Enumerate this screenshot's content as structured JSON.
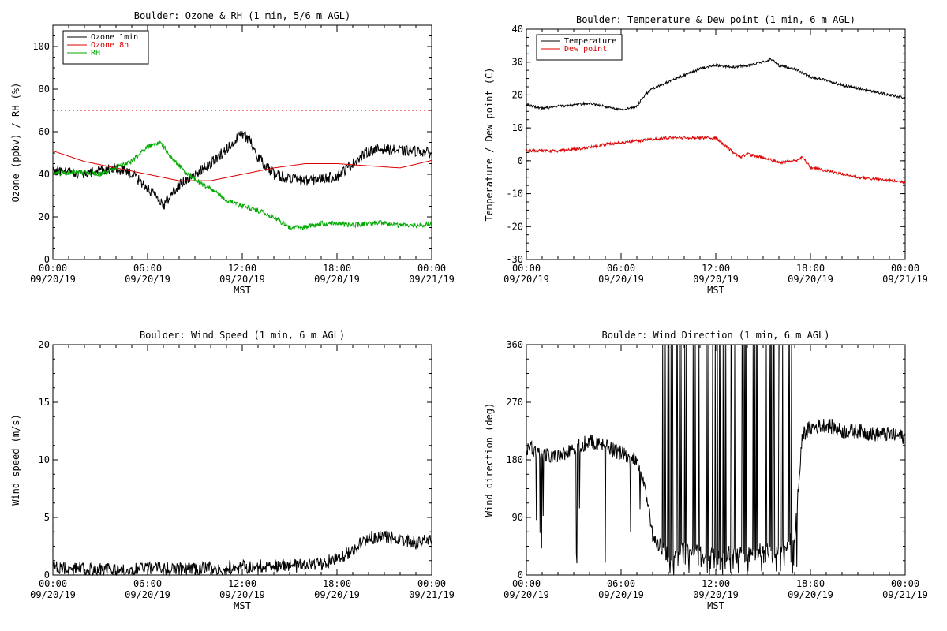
{
  "chart_data": [
    {
      "id": "ozone_rh",
      "type": "line",
      "title": "Boulder: Ozone & RH (1 min, 5/6 m AGL)",
      "xlabel": "MST",
      "ylabel": "Ozone (ppbv) / RH (%)",
      "ylim": [
        0,
        110
      ],
      "yticks": [
        0,
        20,
        40,
        60,
        80,
        100
      ],
      "xlim_hours": [
        0,
        24
      ],
      "x_ticks": [
        {
          "h": 0,
          "time": "00:00",
          "date": "09/20/19"
        },
        {
          "h": 6,
          "time": "06:00",
          "date": "09/20/19"
        },
        {
          "h": 12,
          "time": "12:00",
          "date": "09/20/19"
        },
        {
          "h": 18,
          "time": "18:00",
          "date": "09/20/19"
        },
        {
          "h": 24,
          "time": "00:00",
          "date": "09/21/19"
        }
      ],
      "legend_position": "top-left",
      "grid": false,
      "series": [
        {
          "name": "Ozone 1min",
          "color": "#000000",
          "style": "solid",
          "x": [
            0,
            1,
            2,
            3,
            4,
            5,
            5.5,
            6.2,
            7,
            7.5,
            8,
            9,
            10,
            11,
            12,
            12.5,
            13,
            14,
            15,
            16,
            17,
            18,
            19,
            20,
            21,
            22,
            23,
            24
          ],
          "y": [
            42,
            41,
            40,
            42,
            43,
            40,
            37,
            32,
            25,
            31,
            35,
            40,
            45,
            52,
            59,
            56,
            48,
            40,
            38,
            37,
            38,
            39,
            45,
            51,
            52,
            51,
            51,
            50
          ],
          "noise": 2.5
        },
        {
          "name": "Ozone 8h",
          "color": "#dd0000",
          "style": "solid",
          "x": [
            0,
            2,
            4,
            6,
            8,
            10,
            12,
            14,
            16,
            18,
            20,
            22,
            24
          ],
          "y": [
            51,
            46,
            43,
            40,
            37,
            37,
            40,
            43,
            45,
            45,
            44,
            43,
            46.5
          ],
          "noise": 0
        },
        {
          "name": "RH",
          "color": "#00aa00",
          "style": "solid",
          "x": [
            0,
            1,
            2,
            3,
            4,
            5,
            6,
            6.8,
            7.5,
            8.5,
            10,
            11,
            12,
            13,
            14,
            15,
            16,
            17,
            18,
            19,
            20,
            21,
            22,
            23,
            24
          ],
          "y": [
            40,
            41,
            41,
            40,
            43,
            46,
            53,
            55,
            48,
            40,
            33,
            28,
            25,
            23,
            20,
            15,
            15,
            17,
            17,
            16,
            17,
            17,
            16,
            16,
            17
          ],
          "noise": 1.2
        },
        {
          "name": "",
          "color": "#dd0000",
          "style": "dotted",
          "x": [
            0,
            24
          ],
          "y": [
            70,
            70
          ],
          "noise": 0
        }
      ]
    },
    {
      "id": "temp_dew",
      "type": "line",
      "title": "Boulder: Temperature & Dew point (1 min, 6 m AGL)",
      "xlabel": "MST",
      "ylabel": "Temperature / Dew point (C)",
      "ylim": [
        -30,
        40
      ],
      "yticks": [
        -30,
        -20,
        -10,
        0,
        10,
        20,
        30,
        40
      ],
      "xlim_hours": [
        0,
        24
      ],
      "x_ticks": [
        {
          "h": 0,
          "time": "00:00",
          "date": "09/20/19"
        },
        {
          "h": 6,
          "time": "06:00",
          "date": "09/20/19"
        },
        {
          "h": 12,
          "time": "12:00",
          "date": "09/20/19"
        },
        {
          "h": 18,
          "time": "18:00",
          "date": "09/20/19"
        },
        {
          "h": 24,
          "time": "00:00",
          "date": "09/21/19"
        }
      ],
      "legend_position": "top-left",
      "grid": false,
      "series": [
        {
          "name": "Temperature",
          "color": "#000000",
          "style": "solid",
          "x": [
            0,
            1,
            2,
            3,
            4,
            5,
            6,
            7,
            7.5,
            8,
            9,
            10,
            11,
            12,
            13,
            14,
            15,
            15.5,
            16,
            17,
            18,
            19,
            20,
            21,
            22,
            23,
            24
          ],
          "y": [
            17,
            16,
            16.5,
            17,
            17.5,
            16.5,
            15.5,
            16.5,
            20,
            22,
            24,
            26,
            28,
            29,
            28.5,
            29,
            30,
            31,
            29,
            28,
            25.5,
            24.5,
            23,
            22,
            21,
            20,
            19
          ],
          "noise": 0.4
        },
        {
          "name": "Dew point",
          "color": "#dd0000",
          "style": "solid",
          "x": [
            0,
            1,
            2,
            3,
            4,
            5,
            6,
            7,
            8,
            9,
            10,
            11,
            12,
            12.5,
            13,
            13.5,
            14,
            15,
            16,
            17,
            17.5,
            18,
            19,
            20,
            21,
            22,
            23,
            24
          ],
          "y": [
            3,
            3,
            3,
            3.5,
            4,
            5,
            5.5,
            6,
            6.5,
            7,
            7,
            7,
            7,
            5,
            3,
            1,
            2,
            1,
            -0.5,
            0,
            1,
            -2,
            -3,
            -4,
            -5,
            -5.5,
            -6,
            -6.5
          ],
          "noise": 0.45
        }
      ]
    },
    {
      "id": "wind_speed",
      "type": "line",
      "title": "Boulder: Wind Speed (1 min, 6 m AGL)",
      "xlabel": "MST",
      "ylabel": "Wind speed (m/s)",
      "ylim": [
        0,
        20
      ],
      "yticks": [
        0,
        5,
        10,
        15,
        20
      ],
      "xlim_hours": [
        0,
        24
      ],
      "x_ticks": [
        {
          "h": 0,
          "time": "00:00",
          "date": "09/20/19"
        },
        {
          "h": 6,
          "time": "06:00",
          "date": "09/20/19"
        },
        {
          "h": 12,
          "time": "12:00",
          "date": "09/20/19"
        },
        {
          "h": 18,
          "time": "18:00",
          "date": "09/20/19"
        },
        {
          "h": 24,
          "time": "00:00",
          "date": "09/21/19"
        }
      ],
      "grid": false,
      "series": [
        {
          "name": "",
          "color": "#000000",
          "style": "solid",
          "x": [
            0,
            2,
            4,
            6,
            8,
            10,
            12,
            14,
            16,
            17,
            18,
            19,
            20,
            21,
            22,
            23,
            24
          ],
          "y": [
            0.6,
            0.5,
            0.4,
            0.6,
            0.5,
            0.6,
            0.7,
            0.8,
            0.8,
            1.0,
            1.4,
            2.2,
            3.2,
            3.4,
            3.0,
            2.8,
            3.0
          ],
          "noise": 0.6
        }
      ]
    },
    {
      "id": "wind_dir",
      "type": "line",
      "title": "Boulder: Wind Direction (1 min, 6 m AGL)",
      "xlabel": "MST",
      "ylabel": "Wind direction (deg)",
      "ylim": [
        0,
        360
      ],
      "yticks": [
        0,
        90,
        180,
        270,
        360
      ],
      "xlim_hours": [
        0,
        24
      ],
      "x_ticks": [
        {
          "h": 0,
          "time": "00:00",
          "date": "09/20/19"
        },
        {
          "h": 6,
          "time": "06:00",
          "date": "09/20/19"
        },
        {
          "h": 12,
          "time": "12:00",
          "date": "09/20/19"
        },
        {
          "h": 18,
          "time": "18:00",
          "date": "09/20/19"
        },
        {
          "h": 24,
          "time": "00:00",
          "date": "09/21/19"
        }
      ],
      "grid": false,
      "series": [
        {
          "name": "",
          "color": "#000000",
          "style": "solid",
          "x": [
            0,
            1,
            2,
            3,
            4,
            5,
            6,
            7,
            7.5,
            8,
            9,
            10,
            11,
            12,
            13,
            14,
            15,
            16,
            17,
            17.5,
            18,
            19,
            20,
            21,
            22,
            23,
            24
          ],
          "y": [
            200,
            190,
            185,
            195,
            210,
            200,
            190,
            175,
            140,
            60,
            30,
            40,
            35,
            30,
            35,
            30,
            40,
            35,
            60,
            220,
            230,
            235,
            225,
            225,
            220,
            220,
            215
          ],
          "noise": 12,
          "spikes": {
            "start_h": 8.6,
            "end_h": 17.3
          }
        }
      ]
    }
  ]
}
